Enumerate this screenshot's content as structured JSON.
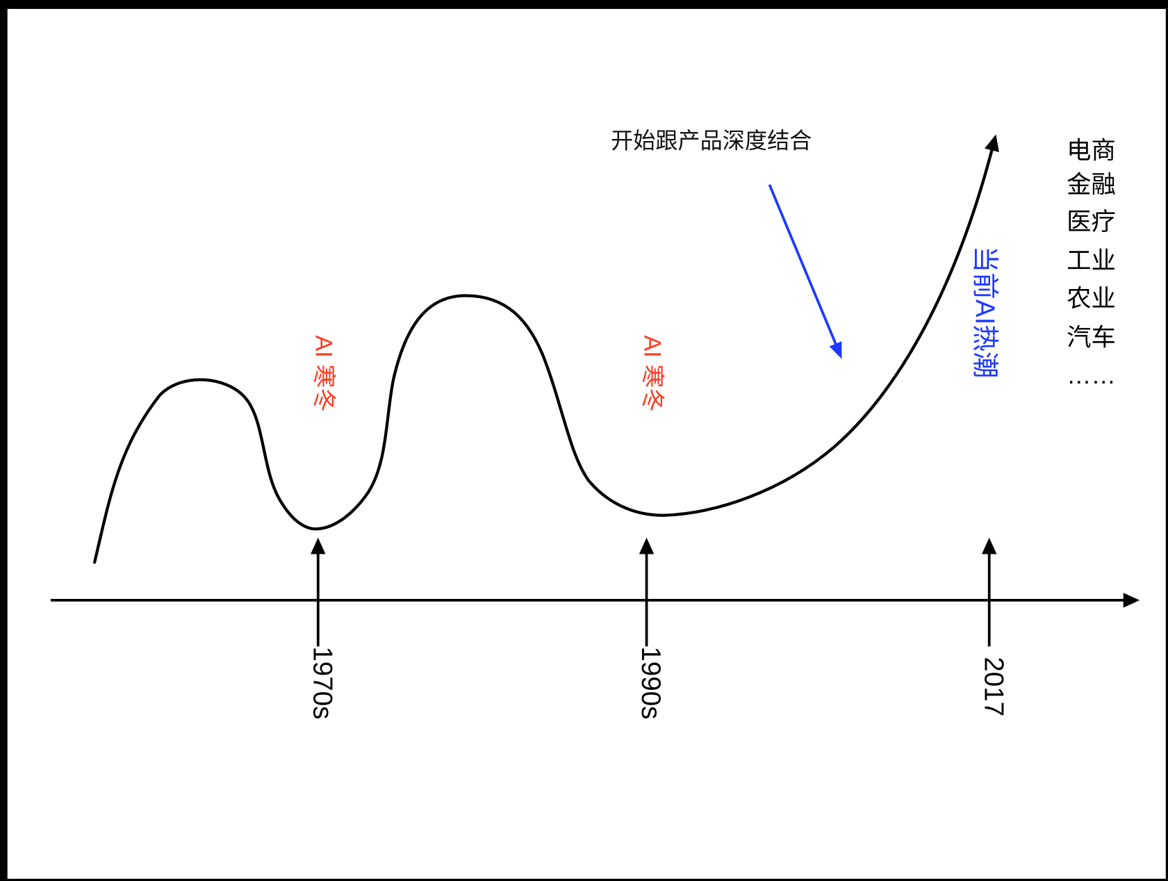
{
  "annotation": "开始跟产品深度结合",
  "milestones": [
    {
      "year": "1970s"
    },
    {
      "year": "1990s"
    },
    {
      "year": "2017"
    }
  ],
  "ai_winter_labels": [
    "AI 寒冬",
    "AI 寒冬"
  ],
  "current_wave_label": "当前AI热潮",
  "industries": [
    "电商",
    "金融",
    "医疗",
    "工业",
    "农业",
    "汽车",
    "……"
  ],
  "colors": {
    "line": "#000000",
    "winter": "#fc3d21",
    "current": "#1c39ff",
    "annotation_arrow": "#1c39ff"
  }
}
